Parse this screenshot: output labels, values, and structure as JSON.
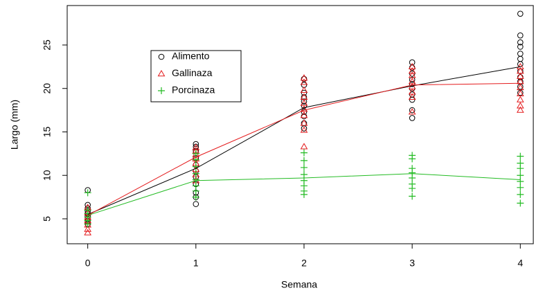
{
  "chart_data": {
    "type": "scatter",
    "x_label": "Semana",
    "y_label": "Largo (mm)",
    "xlim": [
      -0.19,
      4.12
    ],
    "ylim": [
      2.13,
      29.54
    ],
    "xticks": [
      0,
      1,
      2,
      3,
      4
    ],
    "yticks": [
      5,
      10,
      15,
      20,
      25
    ],
    "legend": "top-left",
    "mean_x": [
      0,
      1,
      2,
      3,
      4
    ],
    "series": [
      {
        "name": "Alimento",
        "color": "#000000",
        "marker": "circle",
        "x": [
          0,
          0,
          0,
          0,
          0,
          0,
          0,
          0,
          0,
          1,
          1,
          1,
          1,
          1,
          1,
          1,
          1,
          1,
          1,
          1,
          2,
          2,
          2,
          2,
          2,
          2,
          2,
          2,
          2,
          2,
          3,
          3,
          3,
          3,
          3,
          3,
          3,
          3,
          3,
          3,
          4,
          4,
          4,
          4,
          4,
          4,
          4,
          4,
          4,
          4,
          4,
          4
        ],
        "values": [
          8.3,
          6.6,
          6.2,
          5.9,
          5.6,
          5.3,
          5.0,
          4.7,
          4.4,
          13.6,
          13.3,
          12.8,
          12.0,
          11.2,
          10.5,
          9.8,
          9.0,
          8.0,
          7.5,
          6.7,
          21.1,
          20.4,
          19.5,
          19.0,
          18.5,
          18.0,
          17.3,
          16.8,
          16.0,
          15.4,
          23.0,
          22.4,
          21.7,
          21.0,
          20.5,
          20.0,
          19.3,
          18.7,
          17.5,
          16.6,
          28.6,
          26.1,
          25.3,
          24.8,
          24.0,
          23.4,
          22.8,
          22.0,
          21.3,
          20.8,
          20.2,
          19.5
        ],
        "means": [
          5.5,
          10.8,
          17.8,
          20.3,
          22.5
        ]
      },
      {
        "name": "Gallinaza",
        "color": "#e41a1c",
        "marker": "triangle",
        "x": [
          0,
          0,
          0,
          0,
          0,
          0,
          0,
          1,
          1,
          1,
          1,
          1,
          1,
          1,
          1,
          2,
          2,
          2,
          2,
          2,
          2,
          2,
          2,
          2,
          2,
          3,
          3,
          3,
          3,
          3,
          3,
          3,
          3,
          4,
          4,
          4,
          4,
          4,
          4,
          4,
          4,
          4
        ],
        "values": [
          6.3,
          5.7,
          5.2,
          4.8,
          4.3,
          3.8,
          3.4,
          13.2,
          12.8,
          12.4,
          11.9,
          11.4,
          10.7,
          10.1,
          9.4,
          21.2,
          20.7,
          19.8,
          19.0,
          18.3,
          17.6,
          16.9,
          16.0,
          15.2,
          13.3,
          22.5,
          22.0,
          21.5,
          20.8,
          20.2,
          19.6,
          19.0,
          17.3,
          22.5,
          22.0,
          21.4,
          20.8,
          20.1,
          19.4,
          18.7,
          18.0,
          17.5
        ],
        "means": [
          5.4,
          12.1,
          17.5,
          20.4,
          20.6
        ]
      },
      {
        "name": "Porcinaza",
        "color": "#22bb22",
        "marker": "plus",
        "x": [
          0,
          0,
          0,
          0,
          0,
          0,
          1,
          1,
          1,
          1,
          1,
          1,
          1,
          1,
          2,
          2,
          2,
          2,
          2,
          2,
          2,
          2,
          3,
          3,
          3,
          3,
          3,
          3,
          3,
          3,
          4,
          4,
          4,
          4,
          4,
          4,
          4,
          4
        ],
        "values": [
          8.0,
          6.0,
          5.6,
          5.2,
          4.8,
          4.4,
          12.5,
          11.8,
          11.0,
          10.2,
          9.5,
          8.8,
          8.2,
          7.5,
          12.6,
          11.7,
          10.9,
          10.1,
          9.4,
          8.8,
          8.2,
          7.8,
          12.3,
          11.9,
          10.8,
          10.3,
          9.7,
          9.0,
          8.5,
          7.6,
          12.2,
          11.4,
          10.8,
          10.0,
          9.3,
          8.6,
          7.8,
          6.8
        ],
        "means": [
          5.4,
          9.4,
          9.7,
          10.2,
          9.5
        ]
      }
    ]
  }
}
